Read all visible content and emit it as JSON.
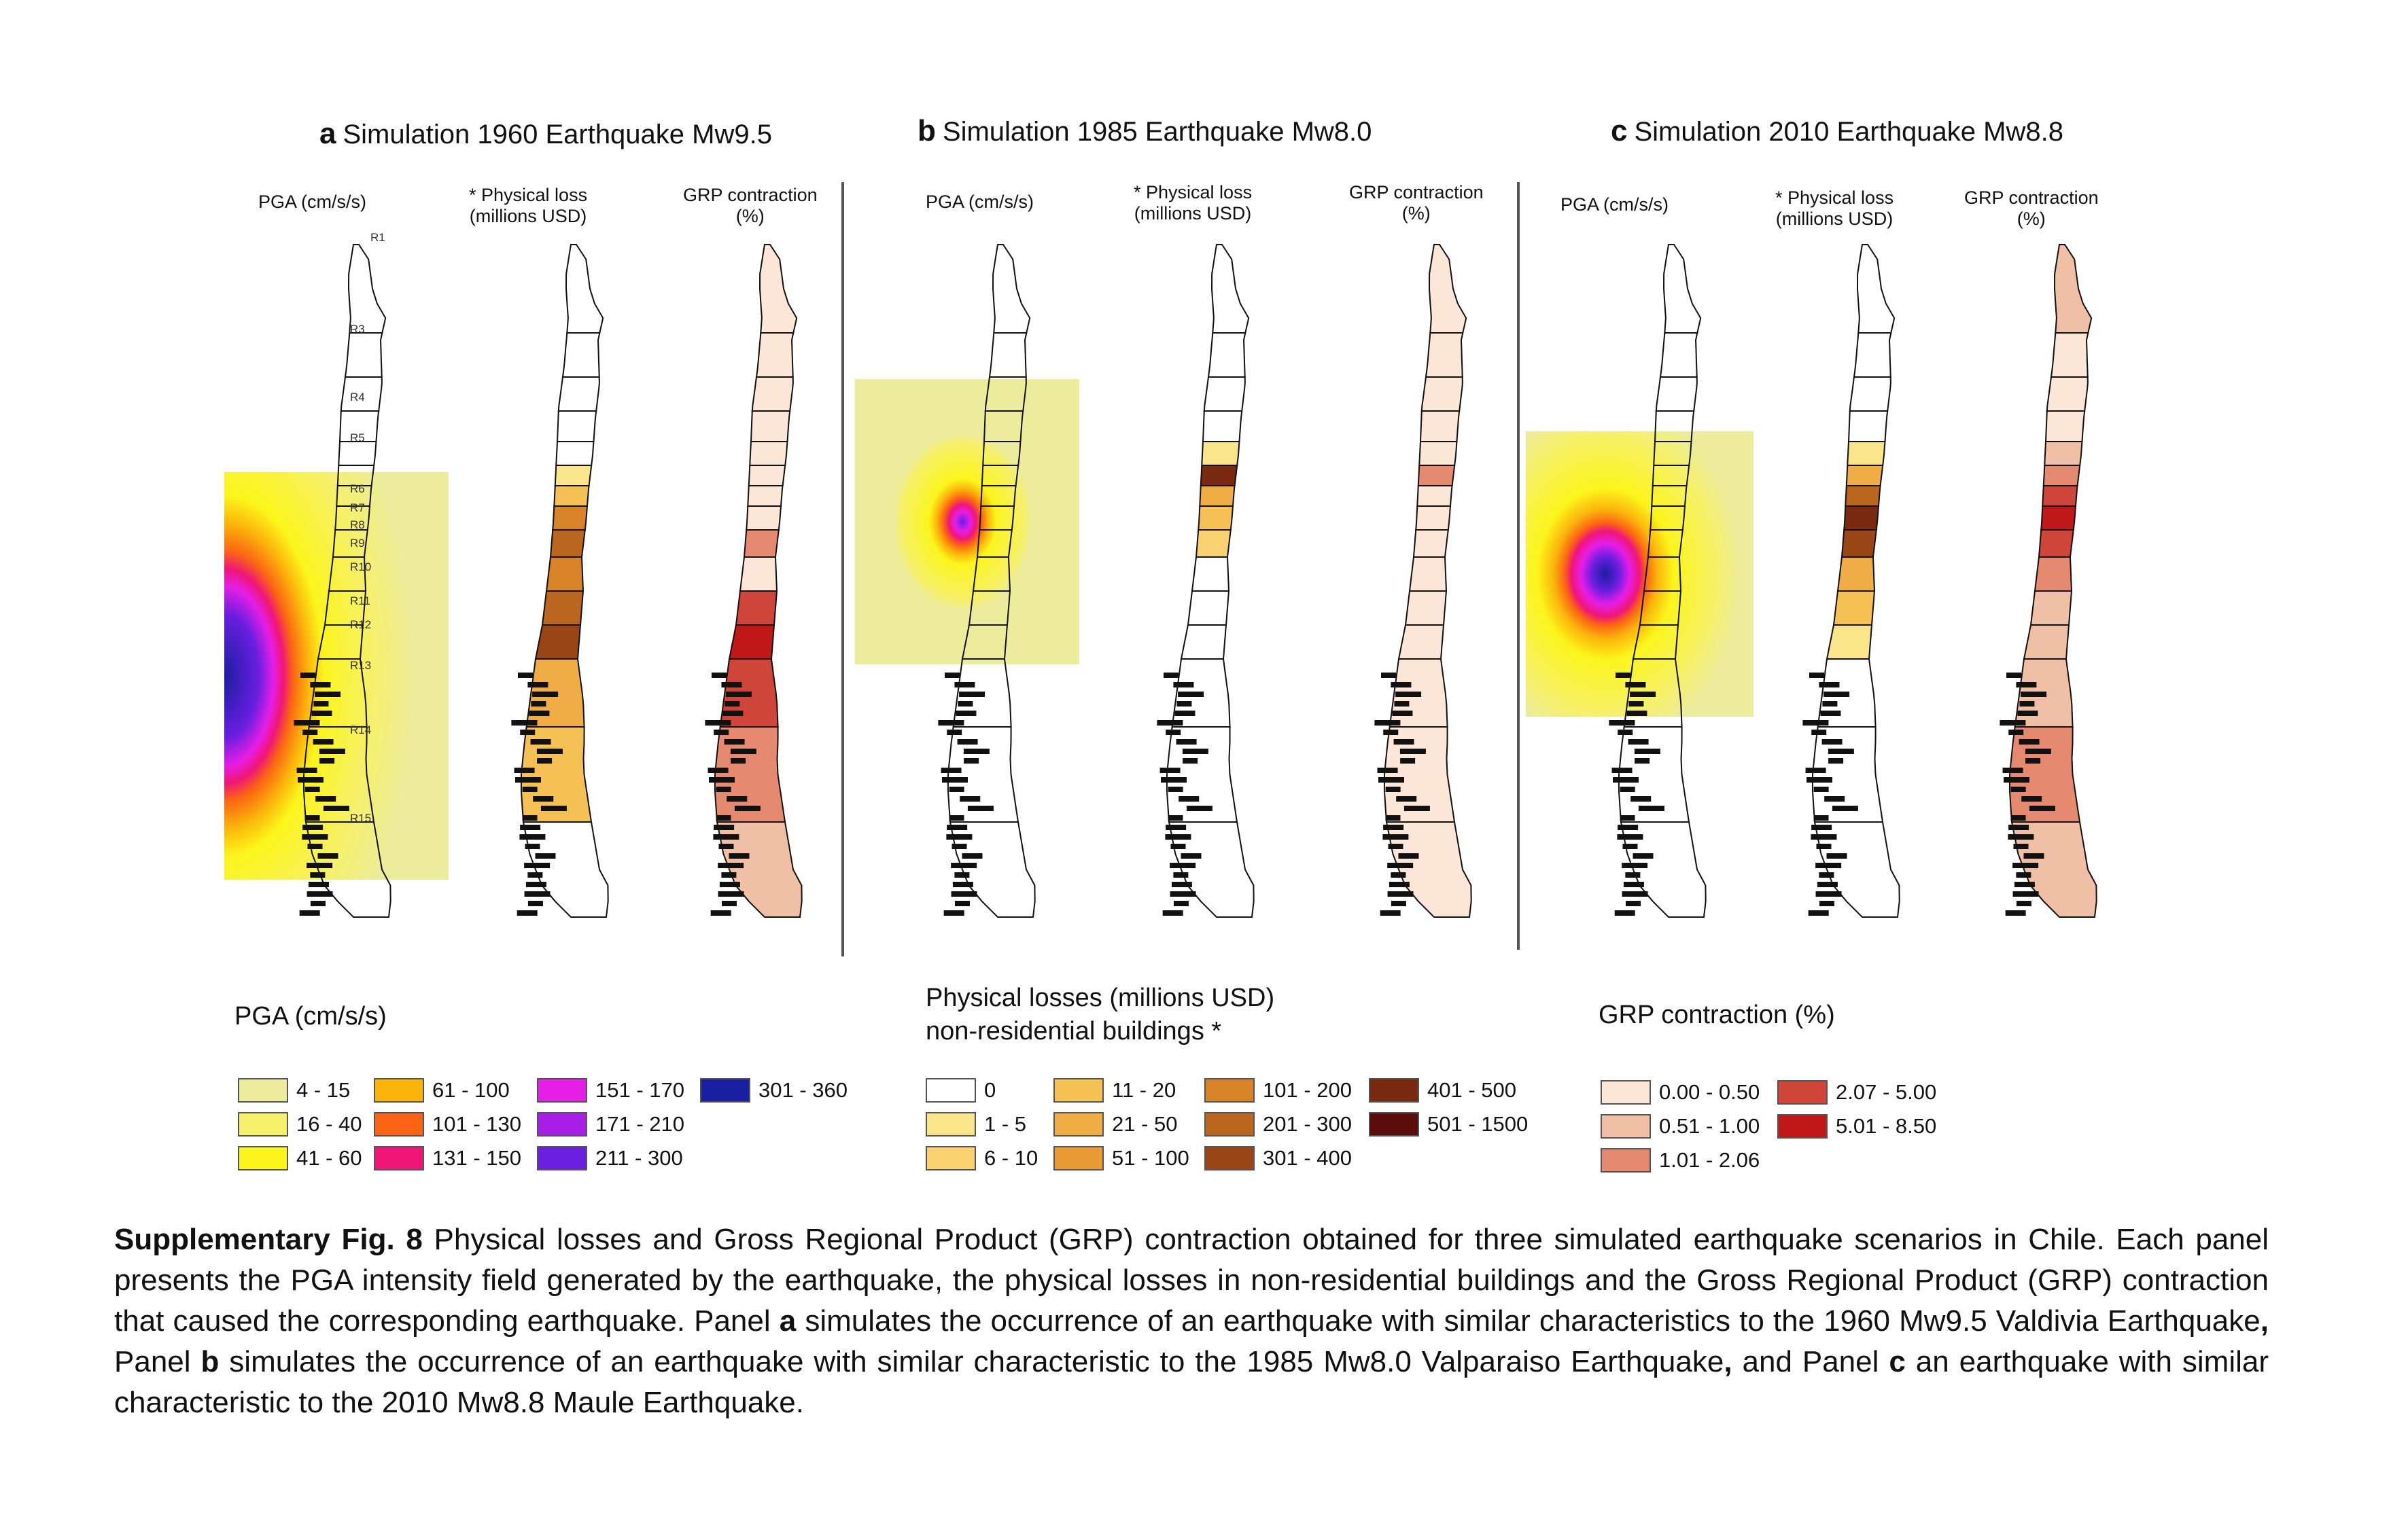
{
  "panels": [
    {
      "letter": "a",
      "title": "Simulation 1960 Earthquake Mw9.5",
      "subtitles": [
        {
          "line1": "PGA (cm/s/s)",
          "line2": ""
        },
        {
          "line1": "* Physical loss",
          "line2": "(millions USD)"
        },
        {
          "line1": "GRP contraction",
          "line2": "(%)"
        }
      ]
    },
    {
      "letter": "b",
      "title": "Simulation 1985 Earthquake Mw8.0",
      "subtitles": [
        {
          "line1": "PGA (cm/s/s)",
          "line2": ""
        },
        {
          "line1": "* Physical loss",
          "line2": "(millions USD)"
        },
        {
          "line1": "GRP contraction",
          "line2": "(%)"
        }
      ]
    },
    {
      "letter": "c",
      "title": "Simulation 2010 Earthquake Mw8.8",
      "subtitles": [
        {
          "line1": "PGA (cm/s/s)",
          "line2": ""
        },
        {
          "line1": "* Physical loss",
          "line2": "(millions USD)"
        },
        {
          "line1": "GRP contraction",
          "line2": "(%)"
        }
      ]
    }
  ],
  "region_labels": [
    "R1",
    "R3",
    "R4",
    "R5",
    "R6",
    "R7",
    "R8",
    "R9",
    "R10",
    "R11",
    "R12",
    "R13",
    "R14",
    "R15"
  ],
  "legends": {
    "pga": {
      "title": "PGA (cm/s/s)",
      "items": [
        {
          "label": "4 - 15",
          "color": "#ecec9c"
        },
        {
          "label": "16 - 40",
          "color": "#f6f06a"
        },
        {
          "label": "41 - 60",
          "color": "#fbf51c"
        },
        {
          "label": "61 - 100",
          "color": "#fbb50a"
        },
        {
          "label": "101 - 130",
          "color": "#fb6414"
        },
        {
          "label": "131 - 150",
          "color": "#f01678"
        },
        {
          "label": "151 - 170",
          "color": "#e61ee6"
        },
        {
          "label": "171 - 210",
          "color": "#a81ee6"
        },
        {
          "label": "211 - 300",
          "color": "#6a1ee0"
        },
        {
          "label": "301 - 360",
          "color": "#1a1ea0"
        }
      ]
    },
    "loss": {
      "title_line1": "Physical losses (millions USD)",
      "title_line2": "non-residential buildings *",
      "items": [
        {
          "label": "0",
          "color": "#ffffff"
        },
        {
          "label": "1 - 5",
          "color": "#fbe58a"
        },
        {
          "label": "6 - 10",
          "color": "#f8d170"
        },
        {
          "label": "11 - 20",
          "color": "#f5c155"
        },
        {
          "label": "21 - 50",
          "color": "#f0ad45"
        },
        {
          "label": "51 - 100",
          "color": "#e89a35"
        },
        {
          "label": "101 - 200",
          "color": "#d98329"
        },
        {
          "label": "201 - 300",
          "color": "#bb661e"
        },
        {
          "label": "301 - 400",
          "color": "#9a4515"
        },
        {
          "label": "401 - 500",
          "color": "#7a2a10"
        },
        {
          "label": "501 - 1500",
          "color": "#5a0d0a"
        }
      ]
    },
    "grp": {
      "title": "GRP contraction (%)",
      "items": [
        {
          "label": "0.00 - 0.50",
          "color": "#fbe6d8"
        },
        {
          "label": "0.51 - 1.00",
          "color": "#f0c0a6"
        },
        {
          "label": "1.01 - 2.06",
          "color": "#e58a70"
        },
        {
          "label": "2.07 - 5.00",
          "color": "#d0453a"
        },
        {
          "label": "5.01 - 8.50",
          "color": "#c01818"
        }
      ]
    }
  },
  "caption": {
    "fig_label": "Supplementary Fig. 8",
    "part1": " Physical losses and Gross Regional Product (GRP) contraction obtained for three simulated earthquake scenarios in Chile. Each panel presents the PGA intensity field generated by the earthquake, the physical losses in non-residential buildings and the Gross Regional Product (GRP) contraction that caused the corresponding earthquake. Panel ",
    "a": "a",
    "part2": " simulates the occurrence of an earthquake with similar characteristics to the 1960 Mw9.5 Valdivia Earthquake",
    "comma1": ",",
    "part3": " Panel ",
    "b": "b",
    "part4": " simulates the occurrence of an earthquake with similar characteristic to the 1985 Mw8.0 Valparaiso Earthquake",
    "comma2": ",",
    "part5": " and Panel ",
    "c": "c",
    "part6": " an earthquake with similar characteristic to the 2010 Mw8.8 Maule Earthquake."
  }
}
